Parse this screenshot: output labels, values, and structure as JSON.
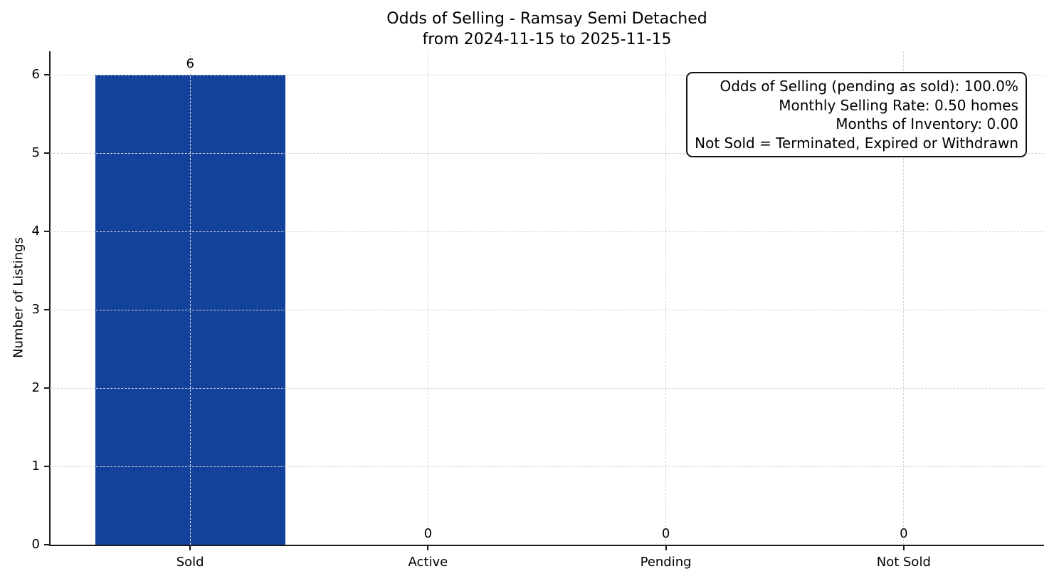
{
  "chart_data": {
    "type": "bar",
    "title_lines": [
      "Odds of Selling - Ramsay Semi Detached",
      "from 2024-11-15 to 2025-11-15"
    ],
    "categories": [
      "Sold",
      "Active",
      "Pending",
      "Not Sold"
    ],
    "values": [
      6,
      0,
      0,
      0
    ],
    "xlabel": "",
    "ylabel": "Number of Listings",
    "yticks": [
      0,
      1,
      2,
      3,
      4,
      5,
      6
    ],
    "ylim": [
      0,
      6.3
    ],
    "bar_color": "#12429c",
    "axis_color": "#1c1c1c",
    "grid": {
      "visible": true,
      "style": "dashed",
      "color": "#d4d4d4",
      "axes": "both"
    },
    "legend": null,
    "annotation": {
      "lines": [
        "Odds of Selling (pending as sold): 100.0%",
        "Monthly Selling Rate: 0.50 homes",
        "Months of Inventory: 0.00",
        "Not Sold = Terminated, Expired or Withdrawn"
      ]
    }
  }
}
